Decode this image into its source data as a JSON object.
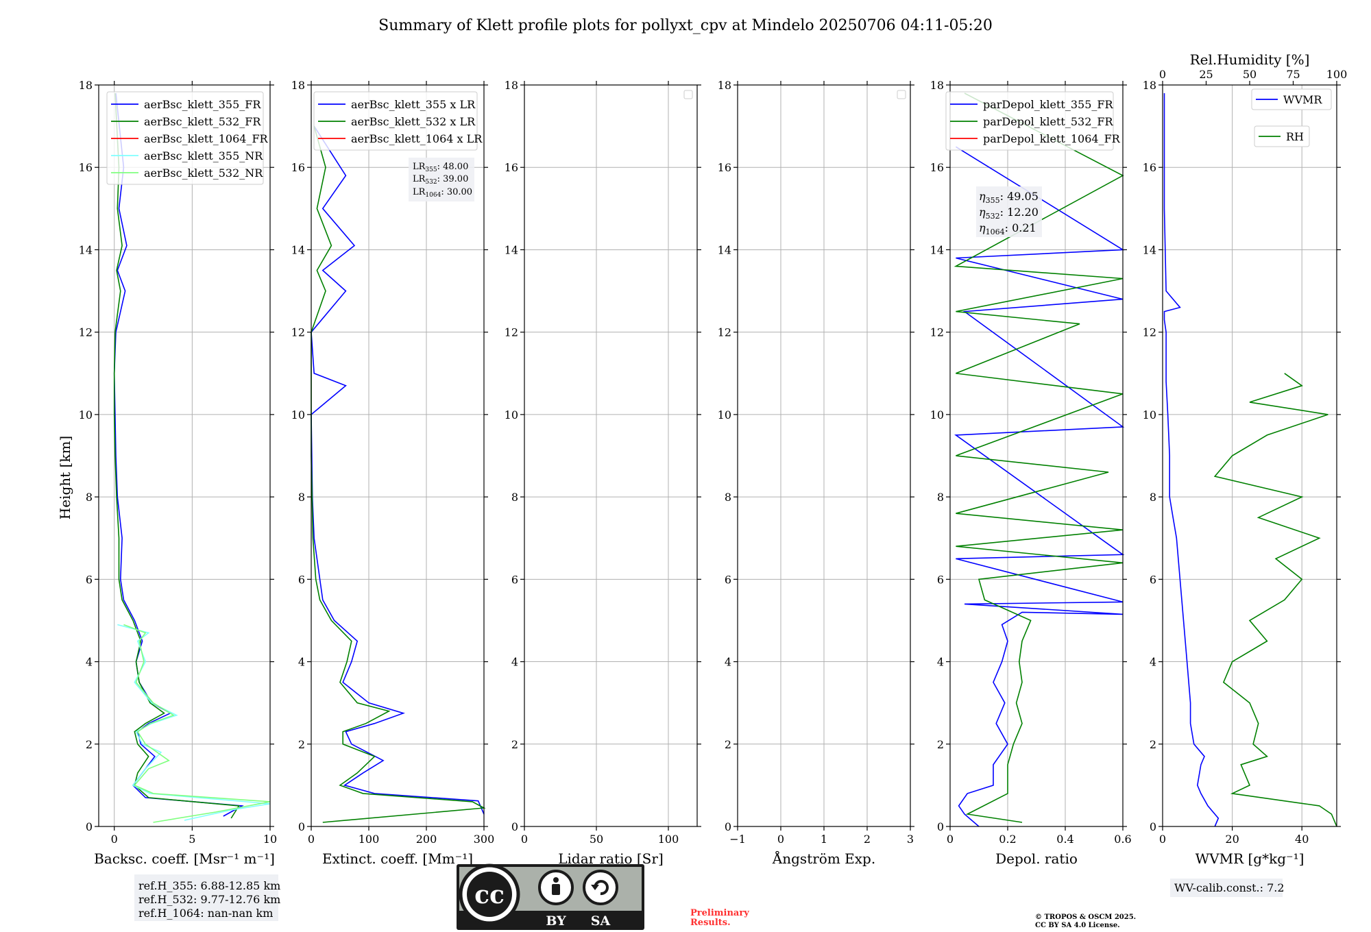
{
  "title": "Summary of Klett profile plots for pollyxt_cpv at Mindelo 20250706 04:11-05:20",
  "ylabel": "Height [km]",
  "colors": {
    "blue": "#0000ff",
    "green": "#008000",
    "red": "#ff0000",
    "cyan": "#7fffff",
    "lightgreen": "#7fff7f",
    "grid": "#b0b0b0"
  },
  "chart_data": [
    {
      "type": "line",
      "id": "backscatter",
      "xlabel": "Backsc. coeff. [Msr⁻¹ m⁻¹]",
      "xlim": [
        -1,
        10
      ],
      "ylim": [
        0,
        18
      ],
      "xticks": [
        0,
        5,
        10
      ],
      "yticks": [
        0,
        2,
        4,
        6,
        8,
        10,
        12,
        14,
        16,
        18
      ],
      "series": [
        {
          "name": "aerBsc_klett_355_FR",
          "color": "#0000ff",
          "x": [
            7.0,
            8.2,
            2.0,
            1.2,
            1.8,
            2.6,
            1.7,
            1.5,
            2.2,
            3.6,
            2.4,
            1.6,
            1.4,
            1.8,
            1.3,
            0.6,
            0.4,
            0.5,
            0.2,
            0.1,
            0.05,
            0.0,
            0.1,
            0.7,
            0.2,
            0.8,
            0.3,
            0.6,
            0.1
          ],
          "y": [
            0.25,
            0.5,
            0.7,
            1.0,
            1.3,
            1.7,
            2.0,
            2.3,
            2.5,
            2.75,
            3.0,
            3.5,
            4.0,
            4.5,
            5.0,
            5.5,
            6.0,
            7.0,
            8.0,
            9.0,
            10.0,
            11.0,
            12.0,
            13.0,
            13.5,
            14.1,
            15.0,
            16.0,
            17.8
          ]
        },
        {
          "name": "aerBsc_klett_532_FR",
          "color": "#008000",
          "x": [
            7.5,
            8.0,
            2.2,
            1.3,
            1.5,
            2.2,
            1.5,
            1.3,
            2.0,
            3.2,
            2.3,
            1.6,
            1.4,
            1.7,
            1.2,
            0.5,
            0.3,
            0.3,
            0.15,
            0.05,
            0.0,
            0.0,
            0.05,
            0.4,
            0.15,
            0.5,
            0.2,
            0.3,
            0.05
          ],
          "y": [
            0.2,
            0.5,
            0.7,
            1.0,
            1.3,
            1.7,
            2.0,
            2.3,
            2.5,
            2.75,
            3.0,
            3.5,
            4.0,
            4.5,
            5.0,
            5.5,
            6.0,
            7.0,
            8.0,
            9.0,
            10.0,
            11.0,
            12.0,
            13.0,
            13.5,
            14.1,
            15.0,
            16.0,
            17.8
          ]
        },
        {
          "name": "aerBsc_klett_1064_FR",
          "color": "#ff0000",
          "x": [],
          "y": []
        },
        {
          "name": "aerBsc_klett_355_NR",
          "color": "#7fffff",
          "x": [
            4.5,
            7.5,
            10.0,
            2.3,
            1.2,
            2.0,
            3.0,
            1.8,
            1.4,
            2.4,
            4.0,
            2.4,
            1.3,
            2.0,
            1.5,
            2.2,
            0.2
          ],
          "y": [
            0.15,
            0.4,
            0.55,
            0.8,
            1.0,
            1.4,
            1.8,
            2.0,
            2.3,
            2.5,
            2.7,
            3.0,
            3.5,
            4.0,
            4.5,
            4.7,
            4.9
          ]
        },
        {
          "name": "aerBsc_klett_532_NR",
          "color": "#7fff7f",
          "x": [
            2.5,
            6.5,
            10.0,
            2.5,
            1.3,
            2.2,
            3.5,
            2.0,
            1.5,
            2.3,
            3.8,
            2.5,
            1.4,
            1.9,
            1.6,
            2.0,
            0.6
          ],
          "y": [
            0.1,
            0.35,
            0.6,
            0.8,
            1.0,
            1.4,
            1.6,
            2.0,
            2.3,
            2.5,
            2.7,
            3.0,
            3.5,
            4.0,
            4.5,
            4.7,
            4.9
          ]
        }
      ]
    },
    {
      "type": "line",
      "id": "extinction",
      "xlabel": "Extinct. coeff. [Mm⁻¹]",
      "xlim": [
        0,
        300
      ],
      "ylim": [
        0,
        18
      ],
      "xticks": [
        0,
        100,
        200,
        300
      ],
      "yticks": [
        0,
        2,
        4,
        6,
        8,
        10,
        12,
        14,
        16,
        18
      ],
      "annotation": {
        "LR355": "48.00",
        "LR532": "39.00",
        "LR1064": "30.00"
      },
      "series": [
        {
          "name": "aerBsc_klett_355 x LR",
          "color": "#0000ff",
          "x": [
            300,
            290,
            110,
            58,
            90,
            125,
            70,
            60,
            110,
            160,
            100,
            55,
            70,
            80,
            40,
            20,
            15,
            5,
            2,
            0,
            60,
            5,
            0,
            60,
            20,
            75,
            20,
            60,
            5
          ],
          "y": [
            0.3,
            0.62,
            0.8,
            1.0,
            1.3,
            1.6,
            2.0,
            2.3,
            2.5,
            2.75,
            3.0,
            3.5,
            4.0,
            4.5,
            5.0,
            5.5,
            6.0,
            7.0,
            8.0,
            10.0,
            10.7,
            11.0,
            12.0,
            13.0,
            13.5,
            14.1,
            15.0,
            15.8,
            17.0
          ]
        },
        {
          "name": "aerBsc_klett_532 x LR",
          "color": "#008000",
          "x": [
            20,
            300,
            280,
            90,
            50,
            80,
            110,
            55,
            55,
            95,
            135,
            80,
            50,
            62,
            70,
            35,
            15,
            8,
            3,
            0,
            0,
            25,
            10,
            35,
            10,
            25,
            5
          ],
          "y": [
            0.1,
            0.45,
            0.6,
            0.8,
            1.0,
            1.3,
            1.7,
            2.0,
            2.3,
            2.5,
            2.8,
            3.0,
            3.5,
            4.0,
            4.5,
            5.0,
            5.5,
            6.0,
            7.0,
            9.0,
            12.0,
            13.0,
            13.5,
            14.1,
            15.0,
            16.0,
            17.0
          ]
        },
        {
          "name": "aerBsc_klett_1064 x LR",
          "color": "#ff0000",
          "x": [],
          "y": []
        }
      ]
    },
    {
      "type": "line",
      "id": "lidar_ratio",
      "xlabel": "Lidar ratio [Sr]",
      "xlim": [
        0,
        120
      ],
      "ylim": [
        0,
        18
      ],
      "xticks": [
        0,
        50,
        100
      ],
      "yticks": [
        0,
        2,
        4,
        6,
        8,
        10,
        12,
        14,
        16,
        18
      ],
      "series": []
    },
    {
      "type": "line",
      "id": "angstrom",
      "xlabel": "Ångström Exp.",
      "xlim": [
        -1,
        3
      ],
      "ylim": [
        0,
        18
      ],
      "xticks": [
        -1,
        0,
        1,
        2,
        3
      ],
      "yticks": [
        0,
        2,
        4,
        6,
        8,
        10,
        12,
        14,
        16,
        18
      ],
      "series": []
    },
    {
      "type": "line",
      "id": "depol",
      "xlabel": "Depol. ratio",
      "xlim": [
        0,
        0.6
      ],
      "ylim": [
        0,
        18
      ],
      "xticks": [
        0.0,
        0.2,
        0.4,
        0.6
      ],
      "yticks": [
        0,
        2,
        4,
        6,
        8,
        10,
        12,
        14,
        16,
        18
      ],
      "annotation": {
        "eta355": "49.05",
        "eta532": "12.20",
        "eta1064": "0.21"
      },
      "series": [
        {
          "name": "parDepol_klett_355_FR",
          "color": "#0000ff",
          "x": [
            0.1,
            0.05,
            0.03,
            0.06,
            0.15,
            0.15,
            0.2,
            0.16,
            0.19,
            0.15,
            0.18,
            0.2,
            0.18,
            0.25,
            0.6,
            0.05,
            0.6,
            0.02,
            0.6,
            0.02,
            0.6,
            0.05,
            0.6,
            0.02,
            0.6,
            0.02
          ],
          "y": [
            0.0,
            0.3,
            0.5,
            0.8,
            1.0,
            1.5,
            2.0,
            2.5,
            3.0,
            3.5,
            4.0,
            4.5,
            4.9,
            5.2,
            5.15,
            5.4,
            5.45,
            6.5,
            6.6,
            9.5,
            9.7,
            12.5,
            12.8,
            13.8,
            14.0,
            16.5
          ]
        },
        {
          "name": "parDepol_klett_532_FR",
          "color": "#008000",
          "x": [
            0.25,
            0.06,
            0.2,
            0.2,
            0.22,
            0.25,
            0.23,
            0.25,
            0.24,
            0.25,
            0.28,
            0.12,
            0.1,
            0.6,
            0.02,
            0.6,
            0.02,
            0.55,
            0.02,
            0.6,
            0.02,
            0.45,
            0.02,
            0.6,
            0.02,
            0.6,
            0.05
          ],
          "y": [
            0.1,
            0.3,
            0.8,
            1.5,
            2.0,
            2.5,
            3.0,
            3.5,
            4.0,
            4.5,
            5.0,
            5.5,
            6.0,
            6.4,
            6.8,
            7.2,
            7.6,
            8.6,
            9.0,
            10.5,
            11.0,
            12.2,
            12.5,
            13.3,
            13.6,
            15.8,
            17.8
          ]
        },
        {
          "name": "parDepol_klett_1064_FR",
          "color": "#ff0000",
          "x": [],
          "y": []
        }
      ]
    },
    {
      "type": "line",
      "id": "wvmr",
      "xlabel": "WVMR [g*kg⁻¹]",
      "x2label": "Rel.Humidity [%]",
      "xlim": [
        0,
        50
      ],
      "x2lim": [
        0,
        100
      ],
      "ylim": [
        0,
        18
      ],
      "xticks": [
        0,
        20,
        40
      ],
      "x2ticks": [
        0,
        25,
        50,
        75,
        100
      ],
      "yticks": [
        0,
        2,
        4,
        6,
        8,
        10,
        12,
        14,
        16,
        18
      ],
      "series": [
        {
          "name": "WVMR",
          "color": "#0000ff",
          "axis": "x",
          "x": [
            15,
            16,
            13,
            11,
            10,
            11,
            12,
            9,
            8,
            8,
            7,
            6,
            5,
            4,
            3,
            2,
            2,
            1.5,
            1,
            1,
            1,
            0.5,
            0.5,
            5,
            1,
            0.5,
            0.5
          ],
          "y": [
            0.0,
            0.2,
            0.5,
            0.8,
            1.0,
            1.5,
            1.7,
            2.0,
            2.5,
            3.0,
            4.0,
            5.0,
            6.0,
            7.0,
            7.5,
            8.0,
            9.0,
            10.0,
            10.8,
            11.5,
            12.0,
            12.3,
            12.5,
            12.6,
            13.0,
            15.0,
            17.8
          ]
        },
        {
          "name": "RH",
          "color": "#008000",
          "axis": "x2",
          "x": [
            100,
            97,
            90,
            40,
            50,
            45,
            60,
            52,
            55,
            50,
            35,
            40,
            60,
            50,
            70,
            80,
            65,
            90,
            55,
            80,
            30,
            40,
            60,
            95,
            50,
            80,
            70
          ],
          "y": [
            0.0,
            0.3,
            0.5,
            0.8,
            1.0,
            1.5,
            1.7,
            2.0,
            2.5,
            3.0,
            3.5,
            4.0,
            4.5,
            5.0,
            5.5,
            6.0,
            6.5,
            7.0,
            7.5,
            8.0,
            8.5,
            9.0,
            9.5,
            10.0,
            10.3,
            10.7,
            11.0
          ]
        }
      ]
    }
  ],
  "footer": {
    "refh_355": "ref.H_355: 6.88-12.85 km",
    "refh_532": "ref.H_532: 9.77-12.76 km",
    "refh_1064": "ref.H_1064: nan-nan km",
    "license_by": "BY",
    "license_sa": "SA",
    "license_cc": "cc",
    "preliminary_1": "Preliminary",
    "preliminary_2": "Results.",
    "copyright_1": "© TROPOS & OSCM 2025.",
    "copyright_2": "CC BY SA 4.0 License.",
    "wv_calib": "WV-calib.const.: 7.2"
  }
}
